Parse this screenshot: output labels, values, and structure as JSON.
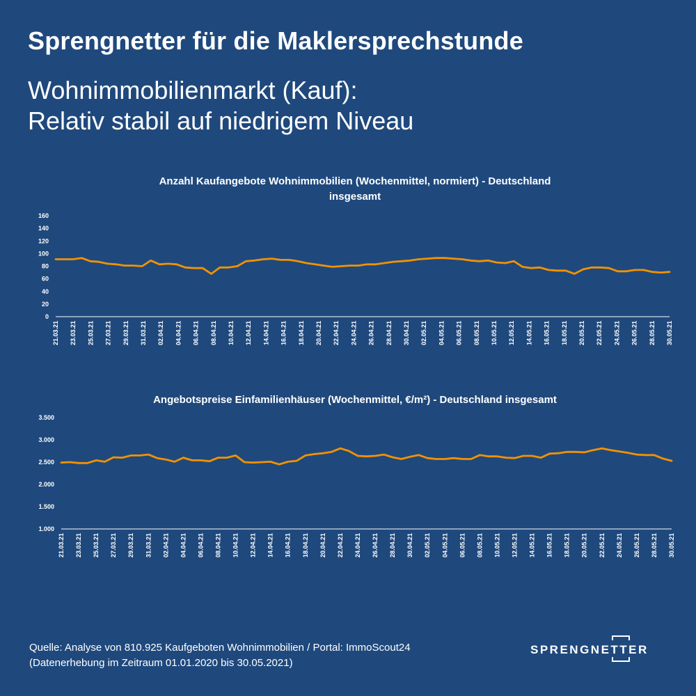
{
  "header": {
    "title": "Sprengnetter für die Maklersprechstunde",
    "subtitle_line1": "Wohnimmobilienmarkt (Kauf):",
    "subtitle_line2": "Relativ stabil auf niedrigem Niveau"
  },
  "colors": {
    "background": "#1f497d",
    "line": "#f39200",
    "text": "#ffffff"
  },
  "chart_data": [
    {
      "type": "line",
      "title_line1": "Anzahl Kaufangebote Wohnimmobilien (Wochenmittel, normiert) - Deutschland",
      "title_line2": "insgesamt",
      "ylim": [
        0,
        160
      ],
      "yticks": [
        "0",
        "20",
        "40",
        "60",
        "80",
        "100",
        "120",
        "140",
        "160"
      ],
      "xticks": [
        "21.03.21",
        "23.03.21",
        "25.03.21",
        "27.03.21",
        "29.03.21",
        "31.03.21",
        "02.04.21",
        "04.04.21",
        "06.04.21",
        "08.04.21",
        "10.04.21",
        "12.04.21",
        "14.04.21",
        "16.04.21",
        "18.04.21",
        "20.04.21",
        "22.04.21",
        "24.04.21",
        "26.04.21",
        "28.04.21",
        "30.04.21",
        "02.05.21",
        "04.05.21",
        "06.05.21",
        "08.05.21",
        "10.05.21",
        "12.05.21",
        "14.05.21",
        "16.05.21",
        "18.05.21",
        "20.05.21",
        "22.05.21",
        "24.05.21",
        "26.05.21",
        "28.05.21",
        "30.05.21"
      ],
      "grid": false,
      "values": [
        91,
        91,
        91,
        93,
        88,
        87,
        84,
        83,
        81,
        81,
        80,
        89,
        83,
        84,
        83,
        78,
        77,
        77,
        68,
        78,
        78,
        80,
        88,
        89,
        91,
        92,
        90,
        90,
        88,
        85,
        83,
        81,
        79,
        80,
        81,
        81,
        83,
        83,
        85,
        87,
        88,
        89,
        91,
        92,
        93,
        93,
        92,
        91,
        89,
        88,
        89,
        86,
        85,
        88,
        79,
        77,
        78,
        74,
        73,
        73,
        68,
        75,
        78,
        78,
        77,
        72,
        72,
        74,
        74,
        71,
        70,
        71
      ]
    },
    {
      "type": "line",
      "title_line1": "Angebotspreise Einfamilienhäuser (Wochenmittel, €/m²) - Deutschland insgesamt",
      "ylim": [
        1000,
        3500
      ],
      "yticks": [
        "1.000",
        "1.500",
        "2.000",
        "2.500",
        "3.000",
        "3.500"
      ],
      "xticks": [
        "21.03.21",
        "23.03.21",
        "25.03.21",
        "27.03.21",
        "29.03.21",
        "31.03.21",
        "02.04.21",
        "04.04.21",
        "06.04.21",
        "08.04.21",
        "10.04.21",
        "12.04.21",
        "14.04.21",
        "16.04.21",
        "18.04.21",
        "20.04.21",
        "22.04.21",
        "24.04.21",
        "26.04.21",
        "28.04.21",
        "30.04.21",
        "02.05.21",
        "04.05.21",
        "06.05.21",
        "08.05.21",
        "10.05.21",
        "12.05.21",
        "14.05.21",
        "16.05.21",
        "18.05.21",
        "20.05.21",
        "22.05.21",
        "24.05.21",
        "26.05.21",
        "28.05.21",
        "30.05.21"
      ],
      "grid": false,
      "values": [
        2490,
        2500,
        2480,
        2480,
        2540,
        2510,
        2610,
        2600,
        2650,
        2650,
        2670,
        2590,
        2560,
        2510,
        2600,
        2540,
        2540,
        2520,
        2600,
        2600,
        2650,
        2500,
        2490,
        2500,
        2510,
        2450,
        2510,
        2530,
        2650,
        2680,
        2700,
        2730,
        2810,
        2750,
        2640,
        2630,
        2640,
        2670,
        2610,
        2570,
        2620,
        2660,
        2590,
        2570,
        2570,
        2590,
        2570,
        2570,
        2660,
        2630,
        2630,
        2600,
        2590,
        2640,
        2640,
        2600,
        2690,
        2700,
        2730,
        2730,
        2720,
        2770,
        2810,
        2770,
        2740,
        2710,
        2670,
        2660,
        2660,
        2580,
        2530
      ]
    }
  ],
  "footer": {
    "source_line1": "Quelle: Analyse von 810.925 Kaufgeboten Wohnimmobilien / Portal: ImmoScout24",
    "source_line2": "(Datenerhebung im Zeitraum  01.01.2020 bis  30.05.2021)",
    "logo_text": "SPRENGNETTER"
  }
}
